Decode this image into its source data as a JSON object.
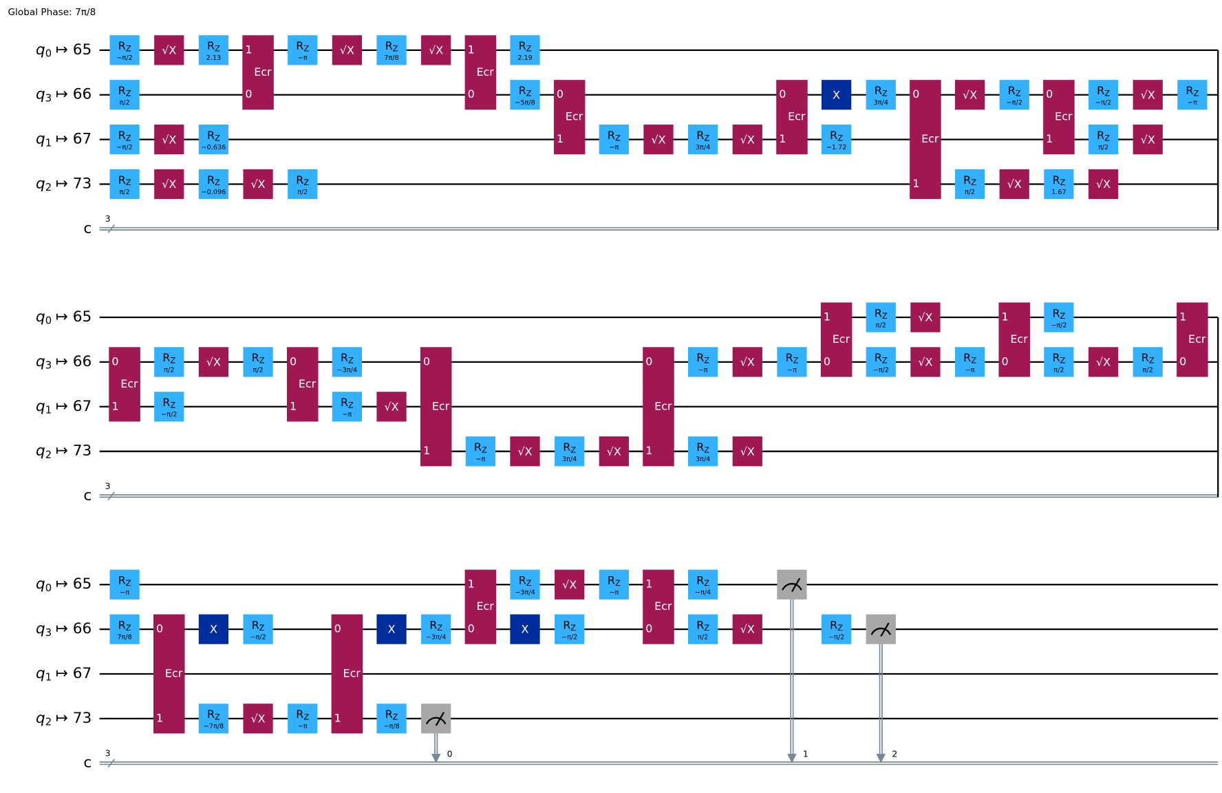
{
  "global_phase": "Global Phase: 7π/8",
  "labels": {
    "rz": "R",
    "rz_sub": "Z",
    "sx": "√X",
    "x": "X",
    "ecr": "Ecr"
  },
  "wires": [
    {
      "reg": "q",
      "sub": "0",
      "map": "↦ 65"
    },
    {
      "reg": "q",
      "sub": "3",
      "map": "↦ 66"
    },
    {
      "reg": "q",
      "sub": "1",
      "map": "↦ 67"
    },
    {
      "reg": "q",
      "sub": "2",
      "map": "↦ 73"
    }
  ],
  "classical": {
    "reg": "c",
    "size": "3"
  },
  "sections": [
    {
      "continues": true,
      "gates": [
        {
          "g": "rz",
          "t": 0,
          "wire": 0,
          "p": "−π/2"
        },
        {
          "g": "sx",
          "t": 1,
          "wire": 0
        },
        {
          "g": "rz",
          "t": 2,
          "wire": 0,
          "p": "2.13"
        },
        {
          "g": "ecr",
          "t": 3,
          "wires": [
            0,
            1
          ],
          "ports": [
            "1",
            "0"
          ]
        },
        {
          "g": "rz",
          "t": 4,
          "wire": 0,
          "p": "−π"
        },
        {
          "g": "sx",
          "t": 5,
          "wire": 0
        },
        {
          "g": "rz",
          "t": 6,
          "wire": 0,
          "p": "7π/8"
        },
        {
          "g": "sx",
          "t": 7,
          "wire": 0
        },
        {
          "g": "ecr",
          "t": 8,
          "wires": [
            0,
            1
          ],
          "ports": [
            "1",
            "0"
          ]
        },
        {
          "g": "rz",
          "t": 9,
          "wire": 0,
          "p": "2.19"
        },
        {
          "g": "rz",
          "t": 0,
          "wire": 1,
          "p": "π/2"
        },
        {
          "g": "rz",
          "t": 9,
          "wire": 1,
          "p": "−5π/8"
        },
        {
          "g": "ecr",
          "t": 10,
          "wires": [
            1,
            2
          ],
          "ports": [
            "0",
            "1"
          ]
        },
        {
          "g": "ecr",
          "t": 15,
          "wires": [
            1,
            2
          ],
          "ports": [
            "0",
            "1"
          ]
        },
        {
          "g": "x",
          "t": 16,
          "wire": 1
        },
        {
          "g": "rz",
          "t": 17,
          "wire": 1,
          "p": "3π/4"
        },
        {
          "g": "ecr",
          "t": 18,
          "wires": [
            1,
            3
          ],
          "ports": [
            "0",
            "1"
          ]
        },
        {
          "g": "sx",
          "t": 19,
          "wire": 1
        },
        {
          "g": "rz",
          "t": 20,
          "wire": 1,
          "p": "−π/2"
        },
        {
          "g": "ecr",
          "t": 21,
          "wires": [
            1,
            2
          ],
          "ports": [
            "0",
            "1"
          ]
        },
        {
          "g": "rz",
          "t": 22,
          "wire": 1,
          "p": "−π/2"
        },
        {
          "g": "sx",
          "t": 23,
          "wire": 1
        },
        {
          "g": "rz",
          "t": 24,
          "wire": 1,
          "p": "−π"
        },
        {
          "g": "rz",
          "t": 0,
          "wire": 2,
          "p": "−π/2"
        },
        {
          "g": "sx",
          "t": 1,
          "wire": 2
        },
        {
          "g": "rz",
          "t": 2,
          "wire": 2,
          "p": "−0.636"
        },
        {
          "g": "rz",
          "t": 11,
          "wire": 2,
          "p": "−π"
        },
        {
          "g": "sx",
          "t": 12,
          "wire": 2
        },
        {
          "g": "rz",
          "t": 13,
          "wire": 2,
          "p": "3π/4"
        },
        {
          "g": "sx",
          "t": 14,
          "wire": 2
        },
        {
          "g": "rz",
          "t": 16,
          "wire": 2,
          "p": "−1.72"
        },
        {
          "g": "rz",
          "t": 22,
          "wire": 2,
          "p": "π/2"
        },
        {
          "g": "sx",
          "t": 23,
          "wire": 2
        },
        {
          "g": "rz",
          "t": 0,
          "wire": 3,
          "p": "π/2"
        },
        {
          "g": "sx",
          "t": 1,
          "wire": 3
        },
        {
          "g": "rz",
          "t": 2,
          "wire": 3,
          "p": "−0.096"
        },
        {
          "g": "sx",
          "t": 3,
          "wire": 3
        },
        {
          "g": "rz",
          "t": 4,
          "wire": 3,
          "p": "π/2"
        },
        {
          "g": "rz",
          "t": 19,
          "wire": 3,
          "p": "π/2"
        },
        {
          "g": "sx",
          "t": 20,
          "wire": 3
        },
        {
          "g": "rz",
          "t": 21,
          "wire": 3,
          "p": "1.67"
        },
        {
          "g": "sx",
          "t": 22,
          "wire": 3
        }
      ]
    },
    {
      "continues": true,
      "gates": [
        {
          "g": "ecr",
          "t": 16,
          "wires": [
            0,
            1
          ],
          "ports": [
            "1",
            "0"
          ]
        },
        {
          "g": "rz",
          "t": 17,
          "wire": 0,
          "p": "π/2"
        },
        {
          "g": "sx",
          "t": 18,
          "wire": 0
        },
        {
          "g": "ecr",
          "t": 20,
          "wires": [
            0,
            1
          ],
          "ports": [
            "1",
            "0"
          ]
        },
        {
          "g": "rz",
          "t": 21,
          "wire": 0,
          "p": "−π/2"
        },
        {
          "g": "ecr",
          "t": 24,
          "wires": [
            0,
            1
          ],
          "ports": [
            "1",
            "0"
          ]
        },
        {
          "g": "ecr",
          "t": 0,
          "wires": [
            1,
            2
          ],
          "ports": [
            "0",
            "1"
          ]
        },
        {
          "g": "rz",
          "t": 1,
          "wire": 1,
          "p": "π/2"
        },
        {
          "g": "sx",
          "t": 2,
          "wire": 1
        },
        {
          "g": "rz",
          "t": 3,
          "wire": 1,
          "p": "π/2"
        },
        {
          "g": "ecr",
          "t": 4,
          "wires": [
            1,
            2
          ],
          "ports": [
            "0",
            "1"
          ]
        },
        {
          "g": "rz",
          "t": 5,
          "wire": 1,
          "p": "−3π/4"
        },
        {
          "g": "ecr",
          "t": 7,
          "wires": [
            1,
            3
          ],
          "ports": [
            "0",
            "1"
          ]
        },
        {
          "g": "ecr",
          "t": 12,
          "wires": [
            1,
            3
          ],
          "ports": [
            "0",
            "1"
          ]
        },
        {
          "g": "rz",
          "t": 13,
          "wire": 1,
          "p": "−π"
        },
        {
          "g": "sx",
          "t": 14,
          "wire": 1
        },
        {
          "g": "rz",
          "t": 15,
          "wire": 1,
          "p": "−π"
        },
        {
          "g": "rz",
          "t": 17,
          "wire": 1,
          "p": "−π/2"
        },
        {
          "g": "sx",
          "t": 18,
          "wire": 1
        },
        {
          "g": "rz",
          "t": 19,
          "wire": 1,
          "p": "−π"
        },
        {
          "g": "rz",
          "t": 21,
          "wire": 1,
          "p": "π/2"
        },
        {
          "g": "sx",
          "t": 22,
          "wire": 1
        },
        {
          "g": "rz",
          "t": 23,
          "wire": 1,
          "p": "π/2"
        },
        {
          "g": "rz",
          "t": 1,
          "wire": 2,
          "p": "−π/2"
        },
        {
          "g": "rz",
          "t": 5,
          "wire": 2,
          "p": "−π"
        },
        {
          "g": "sx",
          "t": 6,
          "wire": 2
        },
        {
          "g": "rz",
          "t": 8,
          "wire": 3,
          "p": "−π"
        },
        {
          "g": "sx",
          "t": 9,
          "wire": 3
        },
        {
          "g": "rz",
          "t": 10,
          "wire": 3,
          "p": "3π/4"
        },
        {
          "g": "sx",
          "t": 11,
          "wire": 3
        },
        {
          "g": "rz",
          "t": 13,
          "wire": 3,
          "p": "3π/4"
        },
        {
          "g": "sx",
          "t": 14,
          "wire": 3
        }
      ]
    },
    {
      "continues": false,
      "gates": [
        {
          "g": "rz",
          "t": 0,
          "wire": 0,
          "p": "−π"
        },
        {
          "g": "ecr",
          "t": 8,
          "wires": [
            0,
            1
          ],
          "ports": [
            "1",
            "0"
          ]
        },
        {
          "g": "rz",
          "t": 9,
          "wire": 0,
          "p": "−3π/4"
        },
        {
          "g": "sx",
          "t": 10,
          "wire": 0
        },
        {
          "g": "rz",
          "t": 11,
          "wire": 0,
          "p": "−π"
        },
        {
          "g": "ecr",
          "t": 12,
          "wires": [
            0,
            1
          ],
          "ports": [
            "1",
            "0"
          ]
        },
        {
          "g": "rz",
          "t": 13,
          "wire": 0,
          "p": "−π/4"
        },
        {
          "g": "measure",
          "t": 15,
          "wire": 0,
          "bit": "1"
        },
        {
          "g": "rz",
          "t": 0,
          "wire": 1,
          "p": "7π/8"
        },
        {
          "g": "ecr",
          "t": 1,
          "wires": [
            1,
            3
          ],
          "ports": [
            "0",
            "1"
          ]
        },
        {
          "g": "x",
          "t": 2,
          "wire": 1
        },
        {
          "g": "rz",
          "t": 3,
          "wire": 1,
          "p": "−π/2"
        },
        {
          "g": "ecr",
          "t": 5,
          "wires": [
            1,
            3
          ],
          "ports": [
            "0",
            "1"
          ]
        },
        {
          "g": "x",
          "t": 6,
          "wire": 1
        },
        {
          "g": "rz",
          "t": 7,
          "wire": 1,
          "p": "−3π/4"
        },
        {
          "g": "x",
          "t": 9,
          "wire": 1
        },
        {
          "g": "rz",
          "t": 10,
          "wire": 1,
          "p": "−π/2"
        },
        {
          "g": "rz",
          "t": 13,
          "wire": 1,
          "p": "π/2"
        },
        {
          "g": "sx",
          "t": 14,
          "wire": 1
        },
        {
          "g": "rz",
          "t": 16,
          "wire": 1,
          "p": "−π/2"
        },
        {
          "g": "measure",
          "t": 17,
          "wire": 1,
          "bit": "2"
        },
        {
          "g": "rz",
          "t": 2,
          "wire": 3,
          "p": "−7π/8"
        },
        {
          "g": "sx",
          "t": 3,
          "wire": 3
        },
        {
          "g": "rz",
          "t": 4,
          "wire": 3,
          "p": "−π"
        },
        {
          "g": "rz",
          "t": 6,
          "wire": 3,
          "p": "−π/8"
        },
        {
          "g": "measure",
          "t": 7,
          "wire": 3,
          "bit": "0"
        }
      ]
    }
  ]
}
